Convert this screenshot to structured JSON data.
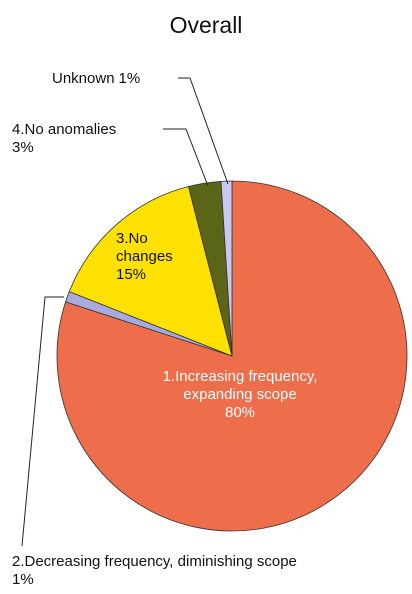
{
  "chart_data": {
    "type": "pie",
    "title": "Overall",
    "categories": [
      "1.Increasing frequency, expanding scope",
      "2.Decreasing frequency, diminishing scope",
      "3.No changes",
      "4.No anomalies",
      "Unknown"
    ],
    "values": [
      80,
      1,
      15,
      3,
      1
    ],
    "value_labels": [
      "80%",
      "1%",
      "15%",
      "3%",
      "1%"
    ],
    "colors": [
      "#ee6d4a",
      "#a8aadc",
      "#ffe100",
      "#5b6517",
      "#c8c9ee"
    ]
  }
}
